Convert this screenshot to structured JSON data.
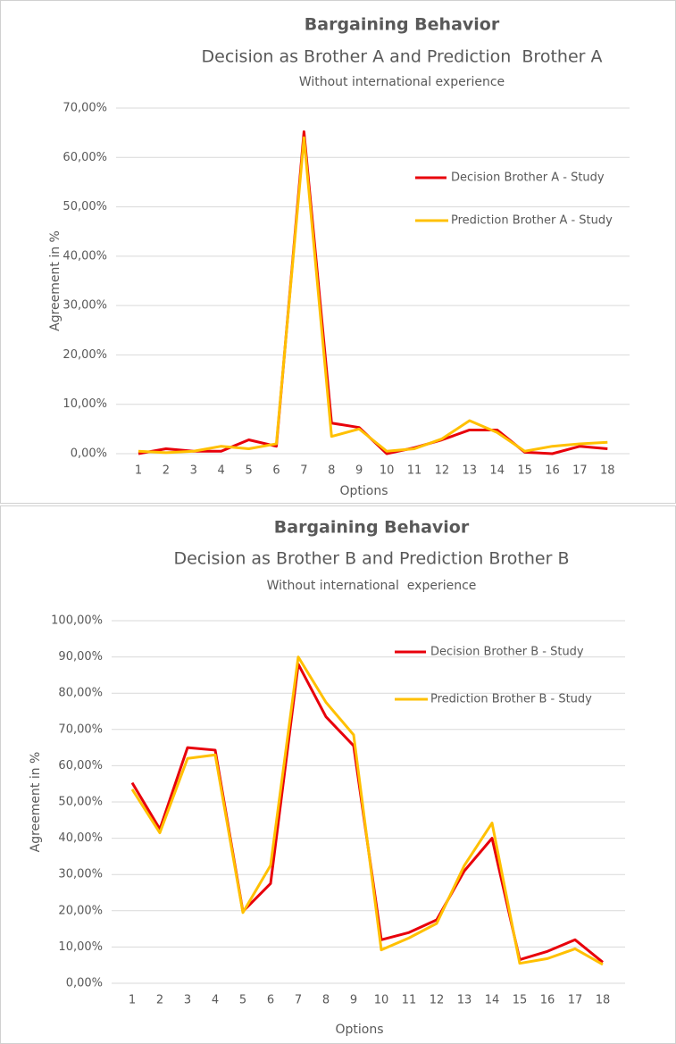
{
  "chart_data": [
    {
      "type": "line",
      "title": "Bargaining Behavior",
      "subtitle": "Decision as Brother A and Prediction  Brother A",
      "note": "Without international experience",
      "x_label": "Options",
      "y_label": "Agreement in %",
      "categories": [
        "1",
        "2",
        "3",
        "4",
        "5",
        "6",
        "7",
        "8",
        "9",
        "10",
        "11",
        "12",
        "13",
        "14",
        "15",
        "16",
        "17",
        "18"
      ],
      "series": [
        {
          "name": "Decision Brother A - Study",
          "color": "#e8000b",
          "values": [
            0,
            1.0,
            0.5,
            0.5,
            2.8,
            1.5,
            65.2,
            6.2,
            5.3,
            0,
            1.2,
            2.8,
            4.8,
            4.8,
            0.3,
            0,
            1.5,
            1.0
          ]
        },
        {
          "name": "Prediction Brother A - Study",
          "color": "#ffc000",
          "values": [
            0.5,
            0.2,
            0.5,
            1.5,
            1.0,
            2.0,
            64.0,
            3.5,
            5.0,
            0.5,
            1.0,
            3.0,
            6.7,
            4.3,
            0.5,
            1.5,
            2.0,
            2.3
          ]
        }
      ],
      "ylim": [
        0,
        70
      ],
      "yticks": [
        {
          "value": 0,
          "label": "0,00%"
        },
        {
          "value": 10,
          "label": "10,00%"
        },
        {
          "value": 20,
          "label": "20,00%"
        },
        {
          "value": 30,
          "label": "30,00%"
        },
        {
          "value": 40,
          "label": "40,00%"
        },
        {
          "value": 50,
          "label": "50,00%"
        },
        {
          "value": 60,
          "label": "60,00%"
        },
        {
          "value": 70,
          "label": "70,00%"
        }
      ],
      "grid": true,
      "legend": "right"
    },
    {
      "type": "line",
      "title": "Bargaining Behavior",
      "subtitle": "Decision as Brother B and Prediction Brother B",
      "note": "Without international  experience",
      "x_label": "Options",
      "y_label": "Agreement in %",
      "categories": [
        "1",
        "2",
        "3",
        "4",
        "5",
        "6",
        "7",
        "8",
        "9",
        "10",
        "11",
        "12",
        "13",
        "14",
        "15",
        "16",
        "17",
        "18"
      ],
      "series": [
        {
          "name": "Decision Brother B - Study",
          "color": "#e8000b",
          "values": [
            55.3,
            42.5,
            65.0,
            64.3,
            19.8,
            27.5,
            88.0,
            73.5,
            65.5,
            12.0,
            14.0,
            17.5,
            31.0,
            40.0,
            6.5,
            8.8,
            12.0,
            5.8
          ]
        },
        {
          "name": "Prediction Brother B - Study",
          "color": "#ffc000",
          "values": [
            53.5,
            41.5,
            62.0,
            63.0,
            19.5,
            32.5,
            90.0,
            77.5,
            68.5,
            9.2,
            12.5,
            16.5,
            32.5,
            44.2,
            5.5,
            6.8,
            9.5,
            5.2
          ]
        }
      ],
      "ylim": [
        0,
        100
      ],
      "yticks": [
        {
          "value": 0,
          "label": "0,00%"
        },
        {
          "value": 10,
          "label": "10,00%"
        },
        {
          "value": 20,
          "label": "20,00%"
        },
        {
          "value": 30,
          "label": "30,00%"
        },
        {
          "value": 40,
          "label": "40,00%"
        },
        {
          "value": 50,
          "label": "50,00%"
        },
        {
          "value": 60,
          "label": "60,00%"
        },
        {
          "value": 70,
          "label": "70,00%"
        },
        {
          "value": 80,
          "label": "80,00%"
        },
        {
          "value": 90,
          "label": "90,00%"
        },
        {
          "value": 100,
          "label": "100,00%"
        }
      ],
      "grid": true,
      "legend": "right"
    }
  ]
}
